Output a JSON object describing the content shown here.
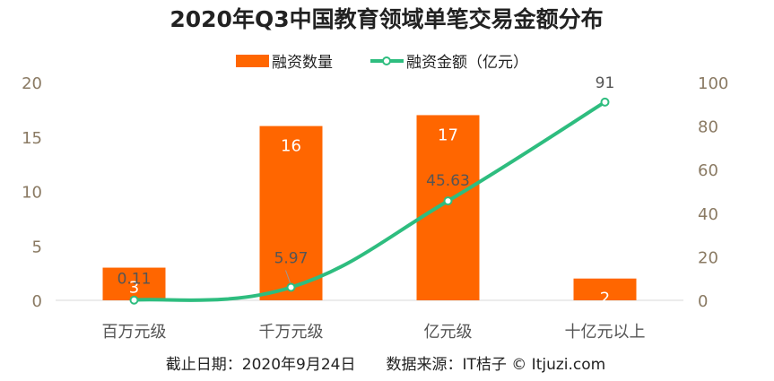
{
  "chart_data": {
    "type": "bar+line",
    "title": "2020年Q3中国教育领域单笔交易金额分布",
    "categories": [
      "百万元级",
      "千万元级",
      "亿元级",
      "十亿元以上"
    ],
    "series": [
      {
        "name": "融资数量",
        "kind": "bar",
        "axis": "left",
        "color": "#ff6600",
        "values": [
          3,
          16,
          17,
          2
        ],
        "labels": [
          "3",
          "16",
          "17",
          "2"
        ]
      },
      {
        "name": "融资金额（亿元）",
        "kind": "line",
        "axis": "right",
        "color": "#2ebd7f",
        "values": [
          0.11,
          5.97,
          45.63,
          91
        ],
        "labels": [
          "0.11",
          "5.97",
          "45.63",
          "91"
        ]
      }
    ],
    "left_axis": {
      "ylim": [
        0,
        20
      ],
      "ticks": [
        "0",
        "5",
        "10",
        "15",
        "20"
      ]
    },
    "right_axis": {
      "ylim": [
        0,
        100
      ],
      "ticks": [
        "0",
        "20",
        "40",
        "60",
        "80",
        "100"
      ]
    },
    "legend_position": "top-center",
    "grid": false
  },
  "footer": {
    "text": "截止日期：2020年9月24日　　数据来源：IT桔子 © Itjuzi.com"
  }
}
